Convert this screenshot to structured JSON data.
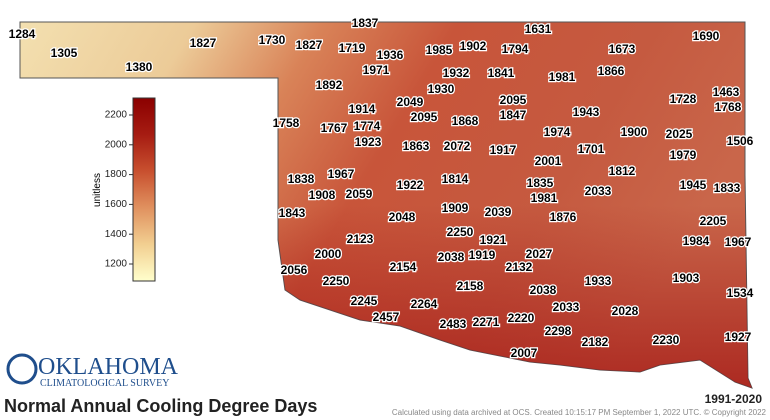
{
  "title": "Normal Annual Cooling Degree Days",
  "period": "1991-2020",
  "credit": "Calculated using data archived at OCS. Created 10:15:17 PM September 1, 2022 UTC. © Copyright 2022",
  "logo": {
    "line1": "OKLAHOMA",
    "line2": "CLIMATOLOGICAL SURVEY"
  },
  "colorbar": {
    "label": "unitless",
    "lim": [
      1086,
      2314
    ],
    "ticks": [
      1200,
      1400,
      1600,
      1800,
      2000,
      2200
    ],
    "colors": [
      "#ffffcc",
      "#f2cf91",
      "#e0915f",
      "#c8502f",
      "#a61c12",
      "#8b0000"
    ]
  },
  "stations": {
    "values": [
      1284,
      1305,
      1380,
      1827,
      1730,
      1827,
      1837,
      1719,
      1936,
      1971,
      1985,
      1902,
      1631,
      1794,
      1673,
      1690,
      1932,
      1841,
      1981,
      1866,
      1892,
      1930,
      2049,
      2095,
      1728,
      1463,
      1768,
      1914,
      1943,
      1847,
      1758,
      1767,
      1774,
      2095,
      1868,
      1974,
      1900,
      2025,
      1506,
      1923,
      1863,
      2072,
      1917,
      1701,
      2001,
      1979,
      1812,
      1838,
      1967,
      1814,
      1835,
      1945,
      1833,
      1908,
      2059,
      1922,
      1981,
      2033,
      1843,
      1909,
      2039,
      1876,
      2048,
      2205,
      2250,
      2123,
      1921,
      1984,
      1967,
      2000,
      2038,
      1919,
      2027,
      2132,
      2154,
      2056,
      2250,
      1933,
      1903,
      2158,
      2038,
      1534,
      2245,
      2264,
      2033,
      2028,
      2457,
      2483,
      2271,
      2220,
      2298,
      2182,
      2230,
      1927,
      2007
    ]
  }
}
